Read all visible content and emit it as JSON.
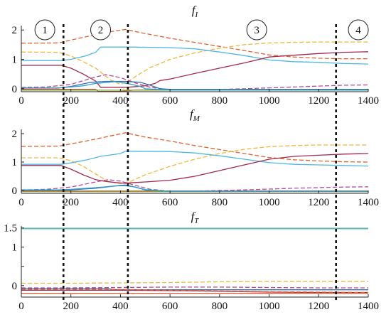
{
  "chart_data": [
    {
      "type": "line",
      "title": "f",
      "title_subscript": "I",
      "xlim": [
        0,
        1400
      ],
      "ylim": [
        -0.1,
        2.15
      ],
      "xticks": [
        0,
        200,
        400,
        600,
        800,
        1000,
        1200,
        1400
      ],
      "yticks": [
        0,
        1,
        2
      ],
      "grid": false,
      "series": [
        {
          "color": "#e2622f",
          "dash": true,
          "x": [
            0,
            150,
            250,
            350,
            420,
            500,
            600,
            700,
            800,
            900,
            1000,
            1100,
            1200,
            1300,
            1400
          ],
          "y": [
            1.55,
            1.56,
            1.75,
            1.93,
            2.02,
            1.88,
            1.72,
            1.58,
            1.44,
            1.3,
            1.15,
            1.08,
            1.04,
            1.02,
            1.02
          ]
        },
        {
          "color": "#f0b63a",
          "dash": true,
          "x": [
            0,
            150,
            200,
            250,
            300,
            330,
            360,
            400,
            440,
            480,
            520,
            600,
            700,
            800,
            900,
            1000,
            1100,
            1200,
            1300,
            1400
          ],
          "y": [
            1.25,
            1.24,
            1.12,
            0.92,
            0.7,
            0.5,
            0.3,
            0.15,
            0.3,
            0.52,
            0.72,
            1.0,
            1.22,
            1.38,
            1.5,
            1.56,
            1.58,
            1.59,
            1.59,
            1.59
          ]
        },
        {
          "color": "#4fb8e4",
          "dash": false,
          "x": [
            0,
            160,
            200,
            260,
            300,
            320,
            420,
            430,
            600,
            700,
            800,
            900,
            1000,
            1100,
            1200,
            1300,
            1400
          ],
          "y": [
            0.96,
            0.96,
            1.0,
            1.12,
            1.24,
            1.42,
            1.42,
            1.42,
            1.4,
            1.36,
            1.25,
            1.13,
            0.98,
            0.92,
            0.9,
            0.86,
            0.84
          ]
        },
        {
          "color": "#a12a4e",
          "dash": false,
          "x": [
            0,
            160,
            200,
            250,
            300,
            320,
            430,
            500,
            540,
            560,
            600,
            700,
            800,
            900,
            1000,
            1100,
            1200,
            1300,
            1400
          ],
          "y": [
            0.8,
            0.8,
            0.7,
            0.5,
            0.26,
            0.05,
            0.05,
            0.1,
            0.18,
            0.28,
            0.33,
            0.52,
            0.7,
            0.88,
            1.08,
            1.14,
            1.2,
            1.24,
            1.26
          ]
        },
        {
          "color": "#b84a9a",
          "dash": true,
          "x": [
            0,
            100,
            200,
            300,
            340,
            400,
            460,
            520,
            600,
            700,
            800,
            900,
            1000,
            1100,
            1200,
            1300,
            1400
          ],
          "y": [
            0.05,
            0.06,
            0.15,
            0.4,
            0.48,
            0.38,
            0.2,
            0.05,
            -0.04,
            -0.04,
            -0.02,
            0.0,
            0.03,
            0.06,
            0.09,
            0.12,
            0.13
          ]
        },
        {
          "color": "#3a6bb5",
          "dash": false,
          "x": [
            0,
            150,
            200,
            280,
            340,
            420,
            480,
            520,
            560,
            600,
            800,
            1000,
            1200,
            1400
          ],
          "y": [
            0.02,
            0.02,
            0.08,
            0.22,
            0.25,
            0.25,
            0.22,
            0.12,
            0.0,
            -0.02,
            -0.02,
            -0.02,
            -0.02,
            -0.02
          ]
        },
        {
          "color": "#d9532b",
          "dash": false,
          "x": [
            0,
            150,
            250,
            300,
            310,
            330,
            360,
            400,
            440,
            460,
            480,
            600,
            800,
            1000,
            1200,
            1400
          ],
          "y": [
            -0.02,
            -0.02,
            -0.02,
            -0.02,
            -0.09,
            -0.09,
            -0.09,
            -0.09,
            -0.06,
            -0.04,
            -0.04,
            -0.04,
            -0.04,
            -0.04,
            -0.04,
            -0.04
          ]
        },
        {
          "color": "#7aa83a",
          "dash": false,
          "x": [
            0,
            1400
          ],
          "y": [
            -0.05,
            -0.05
          ]
        },
        {
          "color": "#2d9fd0",
          "dash": false,
          "x": [
            0,
            150,
            200,
            250,
            300,
            350,
            380,
            400,
            440,
            480,
            500,
            600,
            1400
          ],
          "y": [
            0.03,
            0.03,
            0.06,
            0.1,
            0.18,
            0.22,
            0.24,
            0.22,
            0.16,
            0.08,
            0.0,
            -0.04,
            -0.04
          ]
        }
      ]
    },
    {
      "type": "line",
      "title": "f",
      "title_subscript": "M",
      "xlim": [
        0,
        1400
      ],
      "ylim": [
        -0.1,
        2.15
      ],
      "xticks": [
        0,
        200,
        400,
        600,
        800,
        1000,
        1200,
        1400
      ],
      "yticks": [
        0,
        1,
        2
      ],
      "grid": false,
      "series": [
        {
          "color": "#e2622f",
          "dash": true,
          "x": [
            0,
            150,
            250,
            350,
            420,
            500,
            600,
            700,
            800,
            900,
            1000,
            1100,
            1200,
            1300,
            1400
          ],
          "y": [
            1.55,
            1.56,
            1.72,
            1.9,
            2.03,
            1.88,
            1.74,
            1.58,
            1.44,
            1.3,
            1.16,
            1.08,
            1.04,
            1.01,
            1.0
          ]
        },
        {
          "color": "#f0b63a",
          "dash": true,
          "x": [
            0,
            150,
            200,
            250,
            300,
            350,
            400,
            440,
            500,
            600,
            700,
            800,
            900,
            1000,
            1100,
            1200,
            1300,
            1400
          ],
          "y": [
            1.15,
            1.15,
            1.05,
            0.85,
            0.58,
            0.32,
            0.24,
            0.32,
            0.55,
            0.85,
            1.1,
            1.3,
            1.45,
            1.54,
            1.58,
            1.6,
            1.6,
            1.6
          ]
        },
        {
          "color": "#4fb8e4",
          "dash": false,
          "x": [
            0,
            160,
            200,
            260,
            320,
            400,
            420,
            430,
            600,
            700,
            800,
            900,
            1000,
            1100,
            1200,
            1300,
            1400
          ],
          "y": [
            0.92,
            0.92,
            0.97,
            1.07,
            1.2,
            1.3,
            1.38,
            1.38,
            1.37,
            1.32,
            1.22,
            1.1,
            0.98,
            0.92,
            0.9,
            0.88,
            0.86
          ]
        },
        {
          "color": "#a12a4e",
          "dash": false,
          "x": [
            0,
            160,
            200,
            250,
            300,
            340,
            380,
            420,
            440,
            500,
            600,
            700,
            800,
            900,
            1000,
            1100,
            1200,
            1300,
            1400
          ],
          "y": [
            0.88,
            0.88,
            0.75,
            0.55,
            0.38,
            0.32,
            0.28,
            0.25,
            0.27,
            0.3,
            0.36,
            0.5,
            0.7,
            0.9,
            1.1,
            1.2,
            1.24,
            1.28,
            1.3
          ]
        },
        {
          "color": "#b84a9a",
          "dash": true,
          "x": [
            0,
            100,
            200,
            300,
            350,
            400,
            460,
            520,
            600,
            700,
            800,
            900,
            1000,
            1100,
            1200,
            1300,
            1400
          ],
          "y": [
            0.02,
            0.04,
            0.12,
            0.3,
            0.38,
            0.33,
            0.18,
            0.04,
            -0.02,
            -0.02,
            0.0,
            0.02,
            0.05,
            0.08,
            0.1,
            0.12,
            0.13
          ]
        },
        {
          "color": "#3a6bb5",
          "dash": false,
          "x": [
            0,
            150,
            200,
            300,
            400,
            420,
            460,
            500,
            520,
            600,
            1400
          ],
          "y": [
            0.0,
            0.0,
            0.02,
            0.08,
            0.18,
            0.19,
            0.12,
            0.02,
            -0.02,
            -0.02,
            -0.02
          ]
        },
        {
          "color": "#d9532b",
          "dash": false,
          "x": [
            0,
            1400
          ],
          "y": [
            -0.02,
            -0.02
          ]
        },
        {
          "color": "#7aa83a",
          "dash": false,
          "x": [
            0,
            1400
          ],
          "y": [
            -0.04,
            -0.04
          ]
        },
        {
          "color": "#2d9fd0",
          "dash": false,
          "x": [
            0,
            150,
            200,
            300,
            380,
            420,
            460,
            500,
            600,
            1400
          ],
          "y": [
            0.02,
            0.02,
            0.04,
            0.1,
            0.16,
            0.17,
            0.12,
            0.03,
            -0.03,
            -0.03
          ]
        }
      ]
    },
    {
      "type": "line",
      "title": "f",
      "title_subscript": "T",
      "xlim": [
        0,
        1400
      ],
      "ylim": [
        -0.3,
        1.55
      ],
      "xticks": [
        0,
        200,
        400,
        600,
        800,
        1000,
        1200,
        1400
      ],
      "yticks": [
        0,
        0.5,
        1,
        1.5
      ],
      "ytick_labels": [
        "0",
        "",
        "1",
        "1.5"
      ],
      "grid": false,
      "series": [
        {
          "color": "#7aa83a",
          "dash": false,
          "x": [
            0,
            1400
          ],
          "y": [
            1.49,
            1.49
          ]
        },
        {
          "color": "#4fb8e4",
          "dash": false,
          "x": [
            0,
            1400
          ],
          "y": [
            1.48,
            1.48
          ]
        },
        {
          "color": "#f0b63a",
          "dash": true,
          "x": [
            0,
            200,
            400,
            600,
            800,
            1000,
            1200,
            1400
          ],
          "y": [
            0.06,
            0.06,
            0.07,
            0.08,
            0.1,
            0.11,
            0.11,
            0.11
          ]
        },
        {
          "color": "#b84a9a",
          "dash": true,
          "x": [
            0,
            200,
            400,
            600,
            800,
            1000,
            1200,
            1400
          ],
          "y": [
            -0.06,
            -0.06,
            -0.05,
            -0.04,
            -0.04,
            -0.05,
            -0.06,
            -0.06
          ]
        },
        {
          "color": "#3a6bb5",
          "dash": false,
          "x": [
            0,
            350,
            380,
            1400
          ],
          "y": [
            -0.08,
            -0.08,
            -0.11,
            -0.11
          ]
        },
        {
          "color": "#a12a4e",
          "dash": false,
          "x": [
            0,
            400,
            600,
            800,
            1000,
            1200,
            1400
          ],
          "y": [
            -0.12,
            -0.12,
            -0.13,
            -0.15,
            -0.17,
            -0.18,
            -0.18
          ]
        },
        {
          "color": "#e2622f",
          "dash": true,
          "x": [
            0,
            400,
            600,
            800,
            1000,
            1200,
            1400
          ],
          "y": [
            -0.1,
            -0.1,
            -0.12,
            -0.14,
            -0.16,
            -0.17,
            -0.18
          ]
        },
        {
          "color": "#d9532b",
          "dash": false,
          "x": [
            0,
            1400
          ],
          "y": [
            -0.2,
            -0.2
          ]
        }
      ]
    }
  ],
  "phase_markers": {
    "x_positions": [
      170,
      430,
      1270
    ],
    "labels": [
      "1",
      "2",
      "3",
      "4"
    ],
    "label_x": [
      95,
      320,
      950,
      1360
    ]
  }
}
